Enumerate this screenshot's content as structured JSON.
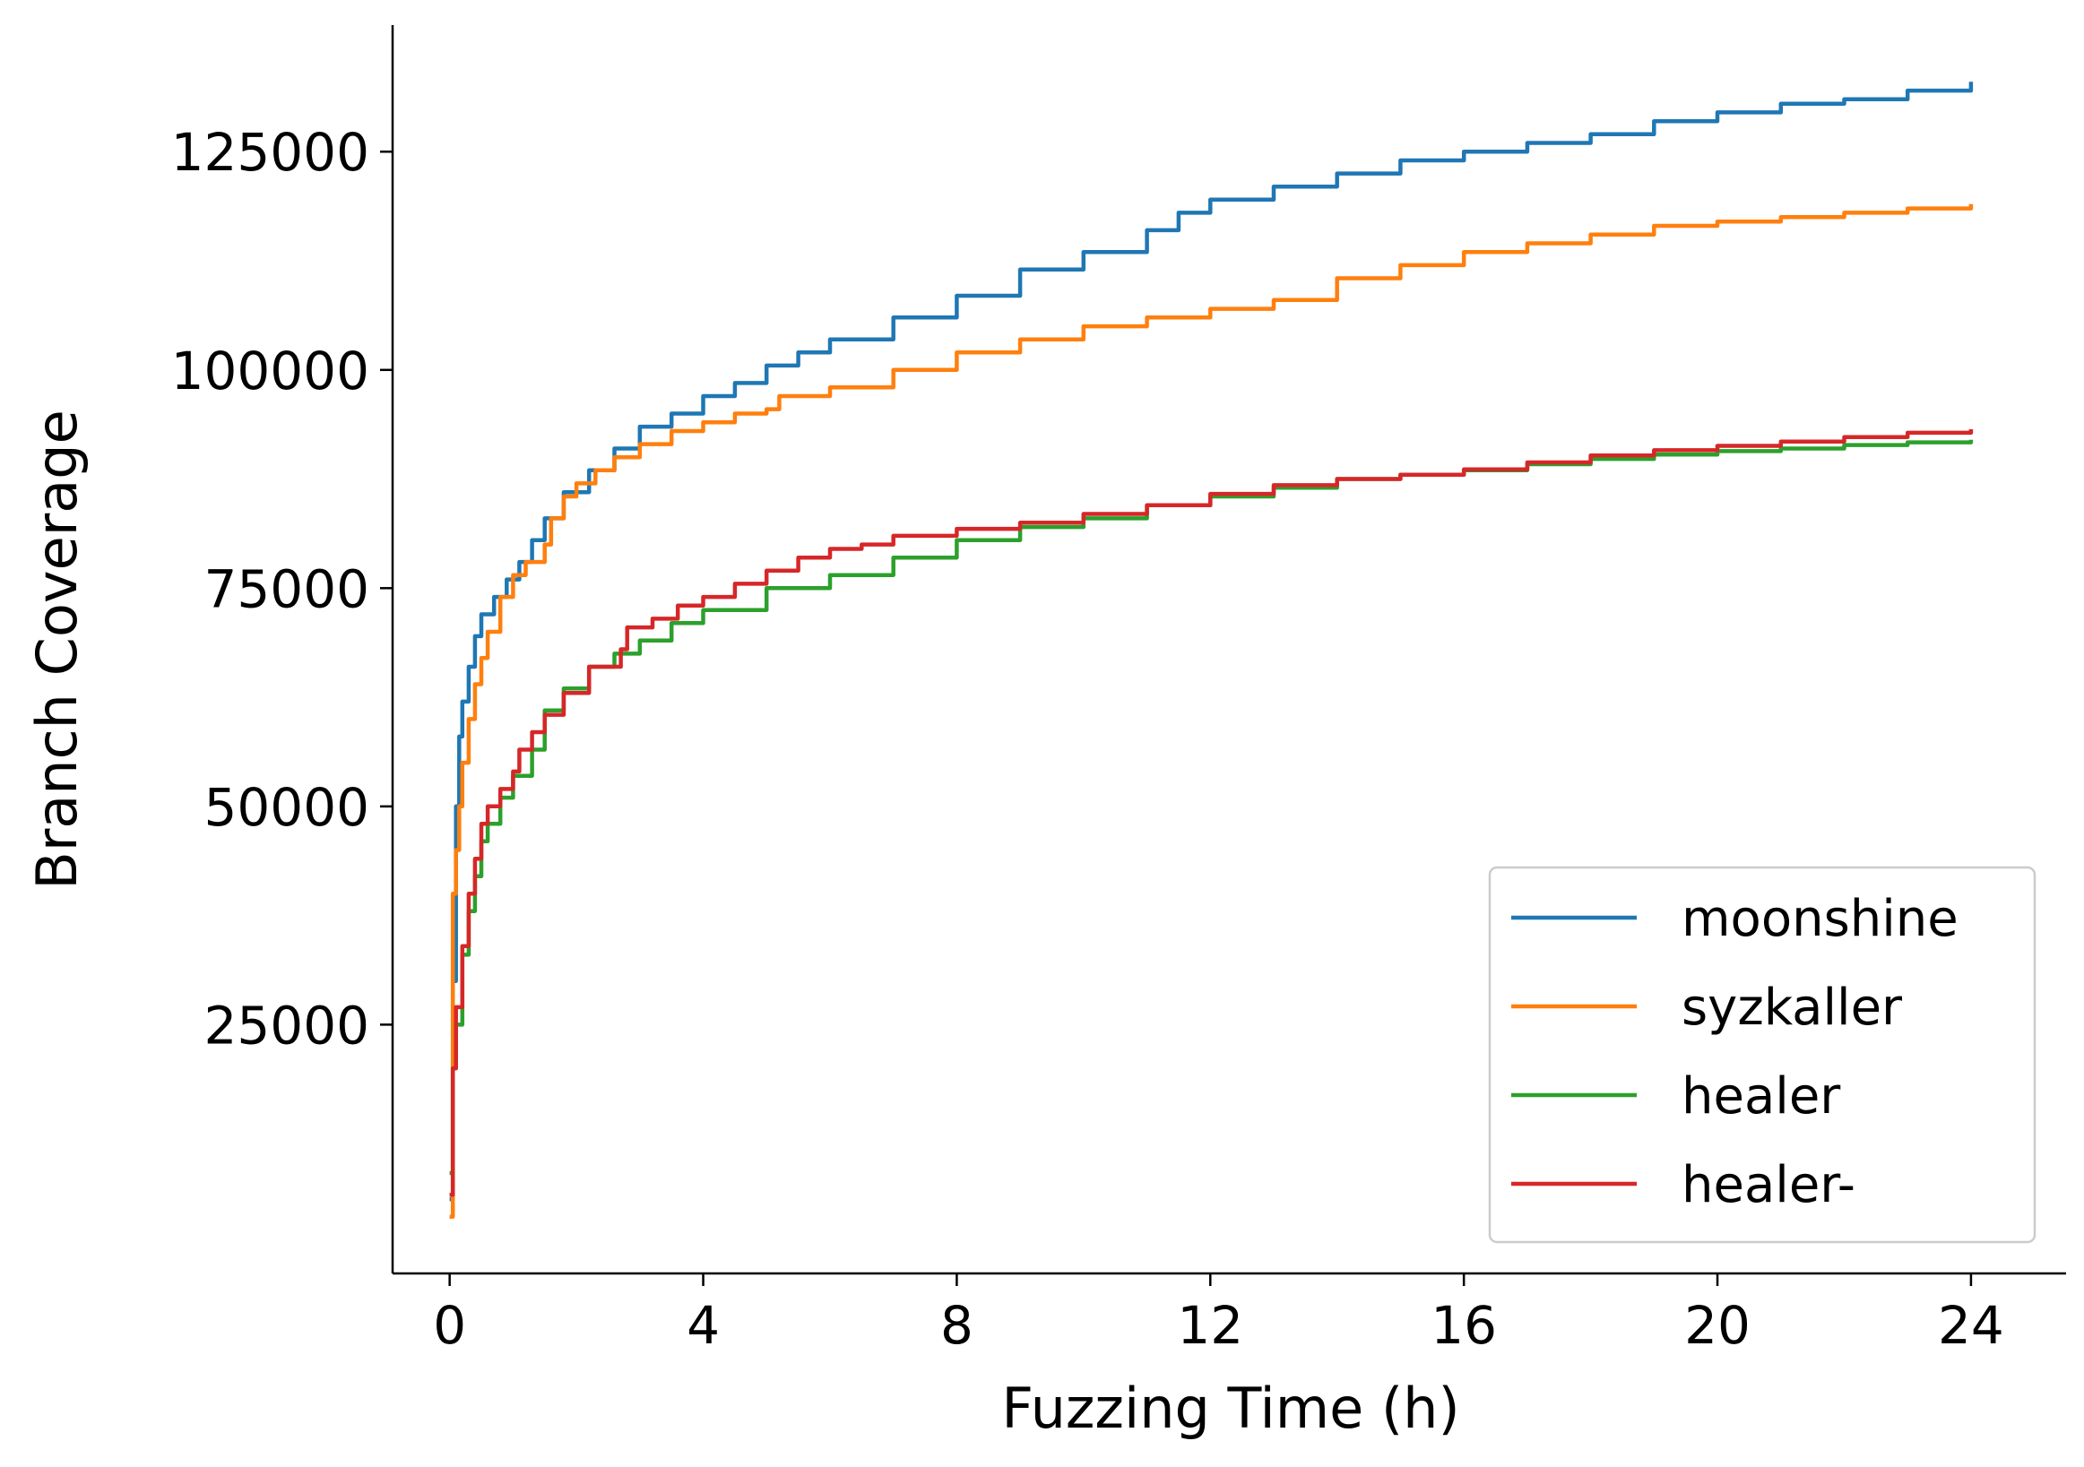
{
  "chart_data": {
    "type": "line",
    "title": "",
    "xlabel": "Fuzzing Time (h)",
    "ylabel": "Branch Coverage",
    "xlim": [
      -0.9,
      25.5
    ],
    "ylim": [
      -3500,
      139500
    ],
    "xticks": [
      0,
      4,
      8,
      12,
      16,
      20,
      24
    ],
    "yticks": [
      25000,
      50000,
      75000,
      100000,
      125000
    ],
    "grid": false,
    "legend_position": "lower-right",
    "series": [
      {
        "name": "moonshine",
        "color": "#1f77b4",
        "x": [
          0,
          0.05,
          0.1,
          0.15,
          0.2,
          0.3,
          0.4,
          0.5,
          0.7,
          0.9,
          1.1,
          1.3,
          1.5,
          1.8,
          2.2,
          2.6,
          3.0,
          3.5,
          4.0,
          4.5,
          5.0,
          5.5,
          6.0,
          7.0,
          8.0,
          9.0,
          10.0,
          11.0,
          11.5,
          12.0,
          13.0,
          14.0,
          15.0,
          16.0,
          17.0,
          18.0,
          19.0,
          20.0,
          21.0,
          22.0,
          23.0,
          24.0
        ],
        "y": [
          5000,
          30000,
          50000,
          58000,
          62000,
          66000,
          69500,
          72000,
          74000,
          76000,
          78000,
          80500,
          83000,
          86000,
          88500,
          91000,
          93500,
          95000,
          97000,
          98500,
          100500,
          102000,
          103500,
          106000,
          108500,
          111500,
          113500,
          116000,
          118000,
          119500,
          121000,
          122500,
          124000,
          125000,
          126000,
          127000,
          128500,
          129500,
          130500,
          131000,
          132000,
          133000
        ]
      },
      {
        "name": "syzkaller",
        "color": "#ff7f0e",
        "x": [
          0,
          0.05,
          0.1,
          0.15,
          0.2,
          0.3,
          0.4,
          0.5,
          0.6,
          0.8,
          1.0,
          1.2,
          1.5,
          1.6,
          1.8,
          2.0,
          2.3,
          2.6,
          3.0,
          3.5,
          4.0,
          4.5,
          5.0,
          5.2,
          6.0,
          7.0,
          8.0,
          9.0,
          10.0,
          11.0,
          12.0,
          13.0,
          14.0,
          15.0,
          16.0,
          17.0,
          18.0,
          19.0,
          20.0,
          21.0,
          22.0,
          23.0,
          24.0
        ],
        "y": [
          3000,
          40000,
          45000,
          50000,
          55000,
          60000,
          64000,
          67000,
          70000,
          74000,
          76500,
          78000,
          80000,
          83000,
          85500,
          87000,
          88500,
          90000,
          91500,
          93000,
          94000,
          95000,
          95500,
          97000,
          98000,
          100000,
          102000,
          103500,
          105000,
          106000,
          107000,
          108000,
          110500,
          112000,
          113500,
          114500,
          115500,
          116500,
          117000,
          117500,
          118000,
          118500,
          119000
        ]
      },
      {
        "name": "healer",
        "color": "#2ca02c",
        "x": [
          0,
          0.05,
          0.1,
          0.2,
          0.3,
          0.4,
          0.5,
          0.6,
          0.8,
          1.0,
          1.3,
          1.5,
          1.8,
          2.2,
          2.6,
          3.0,
          3.5,
          4.0,
          5.0,
          6.0,
          7.0,
          8.0,
          9.0,
          10.0,
          11.0,
          12.0,
          13.0,
          14.0,
          15.0,
          16.0,
          17.0,
          18.0,
          19.0,
          20.0,
          21.0,
          22.0,
          23.0,
          24.0
        ],
        "y": [
          8000,
          20000,
          25000,
          33000,
          38000,
          42000,
          46000,
          48000,
          51000,
          53500,
          56500,
          61000,
          63500,
          66000,
          67500,
          69000,
          71000,
          72500,
          75000,
          76500,
          78500,
          80500,
          82000,
          83000,
          84500,
          85500,
          86500,
          87500,
          88000,
          88500,
          89200,
          89800,
          90300,
          90700,
          91000,
          91400,
          91700,
          92000
        ]
      },
      {
        "name": "healer-",
        "color": "#d62728",
        "x": [
          0,
          0.05,
          0.1,
          0.2,
          0.3,
          0.4,
          0.5,
          0.6,
          0.8,
          1.0,
          1.1,
          1.3,
          1.5,
          1.8,
          2.2,
          2.7,
          2.8,
          3.2,
          3.6,
          4.0,
          4.5,
          5.0,
          5.5,
          6.0,
          6.5,
          7.0,
          8.0,
          9.0,
          10.0,
          11.0,
          12.0,
          13.0,
          14.0,
          15.0,
          16.0,
          17.0,
          18.0,
          19.0,
          20.0,
          21.0,
          22.0,
          23.0,
          24.0
        ],
        "y": [
          5500,
          20000,
          27000,
          34000,
          40000,
          44000,
          48000,
          50000,
          52000,
          54000,
          56500,
          58500,
          60500,
          63000,
          66000,
          68000,
          70500,
          71500,
          73000,
          74000,
          75500,
          77000,
          78500,
          79500,
          80000,
          81000,
          81800,
          82500,
          83500,
          84500,
          85800,
          86800,
          87500,
          88000,
          88600,
          89400,
          90200,
          90800,
          91300,
          91800,
          92300,
          92800,
          93200
        ]
      }
    ]
  }
}
